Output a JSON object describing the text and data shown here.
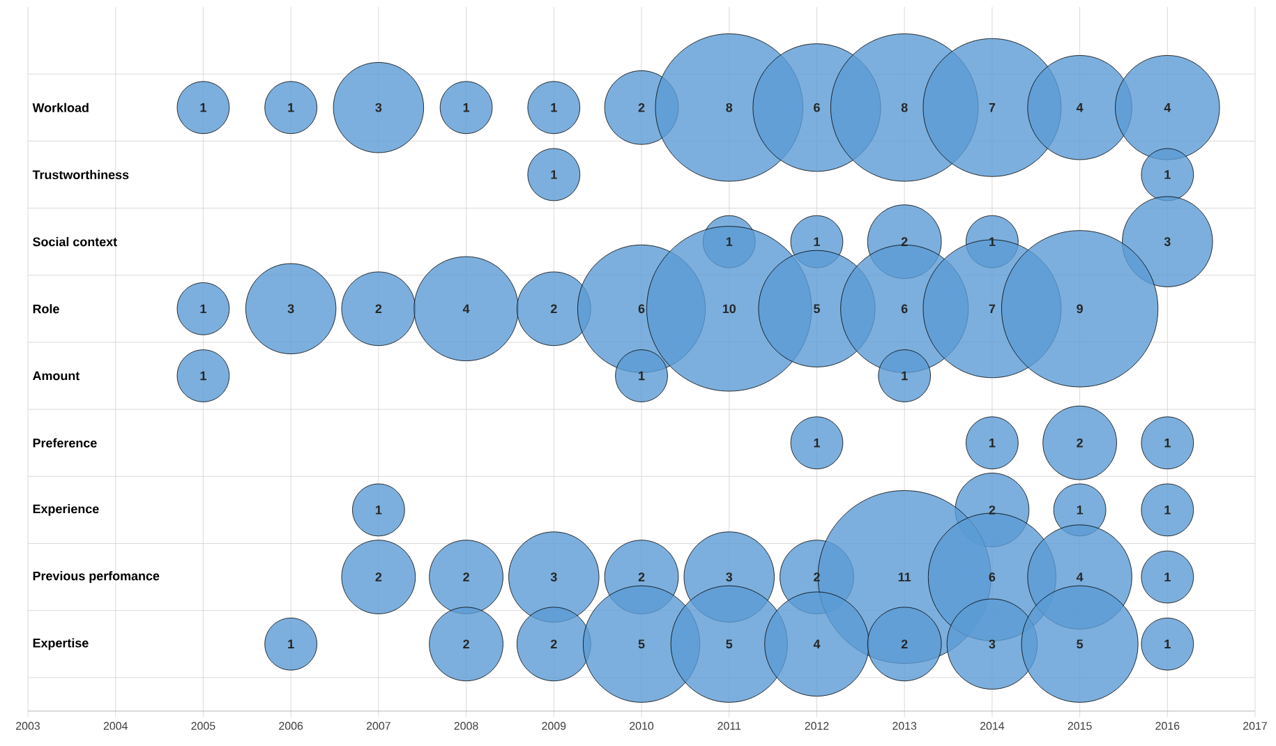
{
  "chart_data": {
    "type": "bubble",
    "orientation": "horizontal",
    "categories": [
      "Workload",
      "Trustworthiness",
      "Social context",
      "Role",
      "Amount",
      "Preference",
      "Experience",
      "Previous perfomance",
      "Expertise"
    ],
    "xlim": [
      2003,
      2017
    ],
    "xticks": [
      2003,
      2004,
      2005,
      2006,
      2007,
      2008,
      2009,
      2010,
      2011,
      2012,
      2013,
      2014,
      2015,
      2016,
      2017
    ],
    "grid": true,
    "series": [
      {
        "color": "#5b9bd5",
        "x": [
          "Workload",
          "Workload",
          "Workload",
          "Workload",
          "Workload",
          "Workload",
          "Workload",
          "Workload",
          "Workload",
          "Workload",
          "Workload",
          "Workload",
          "Trustworthiness",
          "Trustworthiness",
          "Social context",
          "Social context",
          "Social context",
          "Social context",
          "Social context",
          "Role",
          "Role",
          "Role",
          "Role",
          "Role",
          "Role",
          "Role",
          "Role",
          "Role",
          "Role",
          "Role",
          "Amount",
          "Amount",
          "Amount",
          "Preference",
          "Preference",
          "Preference",
          "Preference",
          "Experience",
          "Experience",
          "Experience",
          "Experience",
          "Previous perfomance",
          "Previous perfomance",
          "Previous perfomance",
          "Previous perfomance",
          "Previous perfomance",
          "Previous perfomance",
          "Previous perfomance",
          "Previous perfomance",
          "Previous perfomance",
          "Previous perfomance",
          "Expertise",
          "Expertise",
          "Expertise",
          "Expertise",
          "Expertise",
          "Expertise",
          "Expertise",
          "Expertise",
          "Expertise",
          "Expertise"
        ],
        "values": [
          2005,
          2006,
          2007,
          2008,
          2009,
          2010,
          2011,
          2012,
          2013,
          2014,
          2015,
          2016,
          2009,
          2016,
          2011,
          2012,
          2013,
          2014,
          2016,
          2005,
          2006,
          2007,
          2008,
          2009,
          2010,
          2011,
          2012,
          2013,
          2014,
          2015,
          2005,
          2010,
          2013,
          2012,
          2014,
          2015,
          2016,
          2007,
          2014,
          2015,
          2016,
          2007,
          2008,
          2009,
          2010,
          2011,
          2012,
          2013,
          2014,
          2015,
          2016,
          2006,
          2008,
          2009,
          2010,
          2011,
          2012,
          2013,
          2014,
          2015,
          2016
        ],
        "sizes": [
          1,
          1,
          3,
          1,
          1,
          2,
          8,
          6,
          8,
          7,
          4,
          4,
          1,
          1,
          1,
          1,
          2,
          1,
          3,
          1,
          3,
          2,
          4,
          2,
          6,
          10,
          5,
          6,
          7,
          9,
          1,
          1,
          1,
          1,
          1,
          2,
          1,
          1,
          2,
          1,
          1,
          2,
          2,
          3,
          2,
          3,
          2,
          11,
          6,
          4,
          1,
          1,
          2,
          2,
          5,
          5,
          4,
          2,
          3,
          5,
          1
        ],
        "value_labels": [
          "1",
          "1",
          "3",
          "1",
          "1",
          "2",
          "8",
          "6",
          "8",
          "7",
          "4",
          "4",
          "1",
          "1",
          "1",
          "1",
          "2",
          "1",
          "3",
          "1",
          "3",
          "2",
          "4",
          "2",
          "6",
          "10",
          "5",
          "6",
          "7",
          "9",
          "1",
          "1",
          "1",
          "1",
          "1",
          "2",
          "1",
          "1",
          "2",
          "1",
          "1",
          "2",
          "2",
          "3",
          "2",
          "3",
          "2",
          "11",
          "6",
          "4",
          "1",
          "1",
          "2",
          "2",
          "5",
          "5",
          "4",
          "2",
          "3",
          "5",
          "1"
        ]
      }
    ]
  }
}
